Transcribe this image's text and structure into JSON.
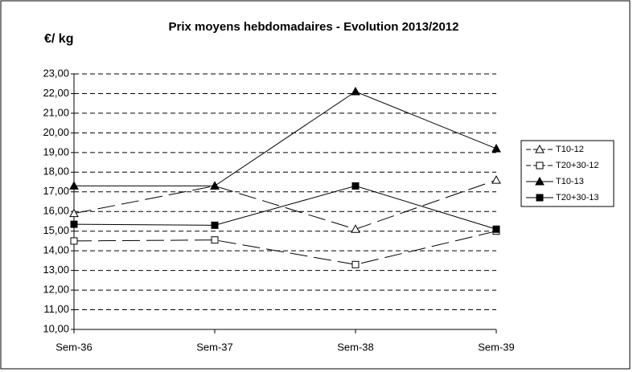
{
  "chart_data": {
    "type": "line",
    "title": "Prix moyens hebdomadaires - Evolution  2013/2012",
    "ylabel": "€/ kg",
    "categories": [
      "Sem-36",
      "Sem-37",
      "Sem-38",
      "Sem-39"
    ],
    "series": [
      {
        "name": "T10-12",
        "color": "#000000",
        "dash": true,
        "marker": "triangle-open",
        "values": [
          15.9,
          17.3,
          15.1,
          17.6
        ]
      },
      {
        "name": "T20+30-12",
        "color": "#000000",
        "dash": true,
        "marker": "square-open",
        "values": [
          14.5,
          14.55,
          13.3,
          15.0
        ]
      },
      {
        "name": "T10-13",
        "color": "#000000",
        "dash": false,
        "marker": "triangle-filled",
        "values": [
          17.3,
          17.3,
          22.1,
          19.2
        ]
      },
      {
        "name": "T20+30-13",
        "color": "#000000",
        "dash": false,
        "marker": "square-filled",
        "values": [
          15.35,
          15.3,
          17.3,
          15.1
        ]
      }
    ],
    "ylim": [
      10,
      23
    ],
    "yticks": [
      {
        "value": 10,
        "label": "10,00"
      },
      {
        "value": 11,
        "label": "11,00"
      },
      {
        "value": 12,
        "label": "12,00"
      },
      {
        "value": 13,
        "label": "13,00"
      },
      {
        "value": 14,
        "label": "14,00"
      },
      {
        "value": 15,
        "label": "15,00"
      },
      {
        "value": 16,
        "label": "16,00"
      },
      {
        "value": 17,
        "label": "17,00"
      },
      {
        "value": 18,
        "label": "18,00"
      },
      {
        "value": 19,
        "label": "19,00"
      },
      {
        "value": 20,
        "label": "20,00"
      },
      {
        "value": 21,
        "label": "21,00"
      },
      {
        "value": 22,
        "label": "22,00"
      },
      {
        "value": 23,
        "label": "23,00"
      }
    ],
    "grid": true,
    "legend": "right"
  }
}
